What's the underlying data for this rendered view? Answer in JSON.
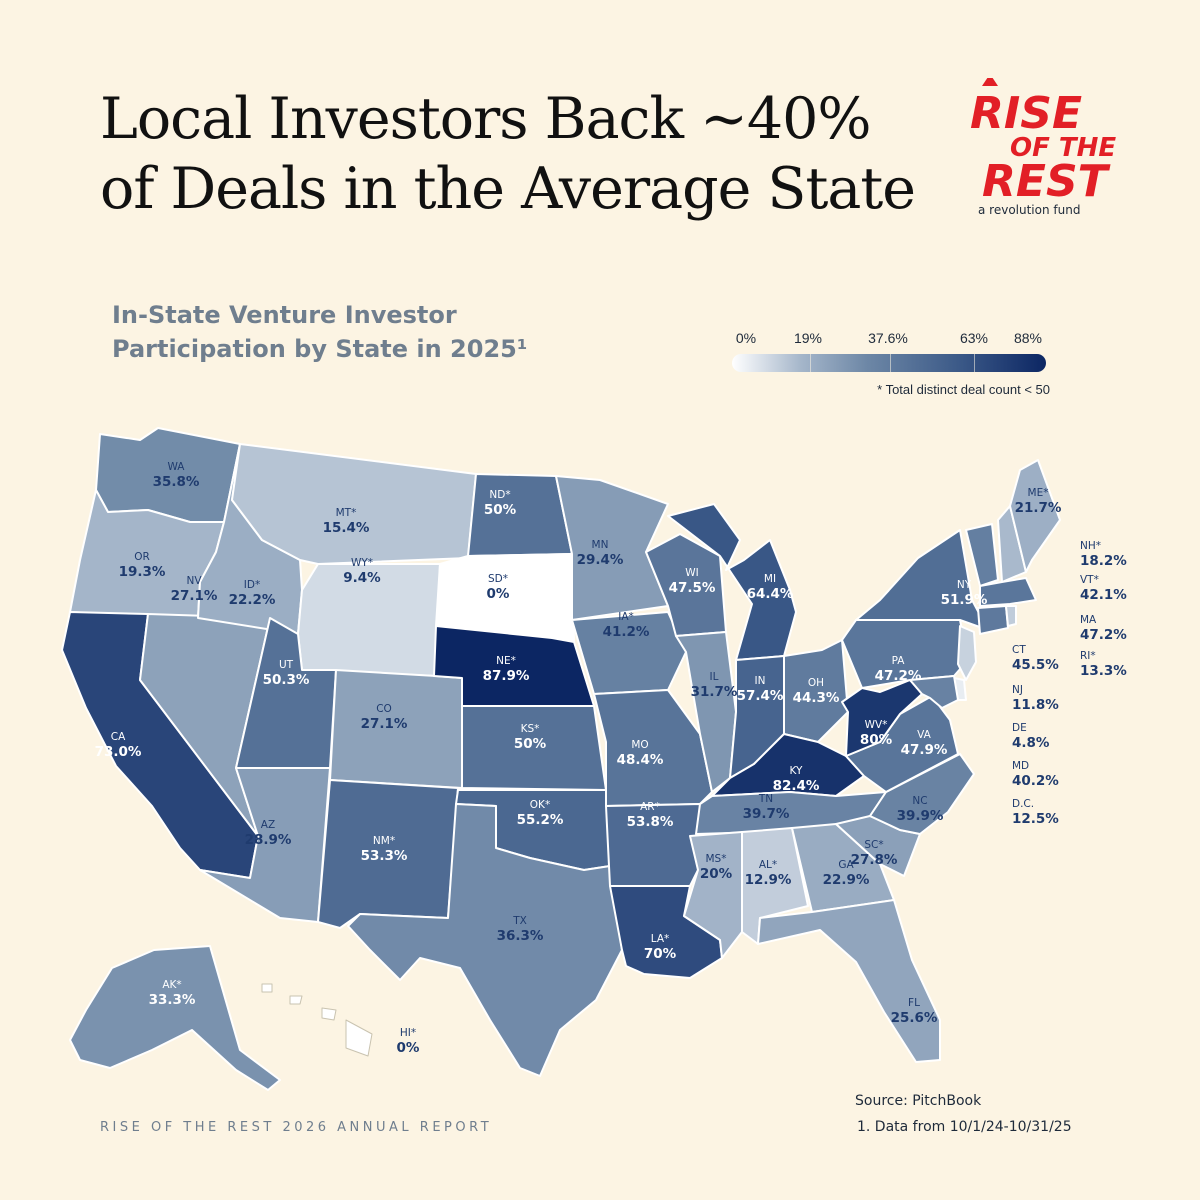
{
  "title": {
    "line1": "Local Investors Back ~40%",
    "line2": "of  Deals in the Average State"
  },
  "logo": {
    "line1": "RISE",
    "line2": "OF THE",
    "line3": "REST",
    "tagline": "a  revolution fund",
    "color": "#e21f26"
  },
  "subtitle": {
    "line1": "In-State Venture Investor",
    "line2": "Participation by State in 2025¹"
  },
  "legend": {
    "ticks": [
      "0%",
      "19%",
      "37.6%",
      "63%",
      "88%"
    ],
    "tick_values": [
      0,
      19,
      37.6,
      63,
      88
    ],
    "note": "* Total distinct deal count < 50"
  },
  "colors": {
    "background": "#fcf4e3",
    "light_label": "#1f3b6e",
    "dark_label": "#ffffff"
  },
  "chart_data": {
    "type": "choropleth",
    "unit": "%",
    "states": [
      {
        "abbr": "WA",
        "value": 35.8,
        "label": "35.8%"
      },
      {
        "abbr": "OR",
        "value": 19.3,
        "label": "19.3%"
      },
      {
        "abbr": "CA",
        "value": 73.0,
        "label": "73.0%"
      },
      {
        "abbr": "NV",
        "value": 27.1,
        "label": "27.1%"
      },
      {
        "abbr": "ID*",
        "value": 22.2,
        "label": "22.2%"
      },
      {
        "abbr": "MT*",
        "value": 15.4,
        "label": "15.4%"
      },
      {
        "abbr": "WY*",
        "value": 9.4,
        "label": "9.4%"
      },
      {
        "abbr": "UT",
        "value": 50.3,
        "label": "50.3%"
      },
      {
        "abbr": "AZ",
        "value": 28.9,
        "label": "28.9%"
      },
      {
        "abbr": "CO",
        "value": 27.1,
        "label": "27.1%"
      },
      {
        "abbr": "NM*",
        "value": 53.3,
        "label": "53.3%"
      },
      {
        "abbr": "ND*",
        "value": 50,
        "label": "50%"
      },
      {
        "abbr": "SD*",
        "value": 0,
        "label": "0%"
      },
      {
        "abbr": "NE*",
        "value": 87.9,
        "label": "87.9%"
      },
      {
        "abbr": "KS*",
        "value": 50,
        "label": "50%"
      },
      {
        "abbr": "OK*",
        "value": 55.2,
        "label": "55.2%"
      },
      {
        "abbr": "TX",
        "value": 36.3,
        "label": "36.3%"
      },
      {
        "abbr": "MN",
        "value": 29.4,
        "label": "29.4%"
      },
      {
        "abbr": "IA*",
        "value": 41.2,
        "label": "41.2%"
      },
      {
        "abbr": "MO",
        "value": 48.4,
        "label": "48.4%"
      },
      {
        "abbr": "AR*",
        "value": 53.8,
        "label": "53.8%"
      },
      {
        "abbr": "LA*",
        "value": 70,
        "label": "70%"
      },
      {
        "abbr": "WI",
        "value": 47.5,
        "label": "47.5%"
      },
      {
        "abbr": "IL",
        "value": 31.7,
        "label": "31.7%"
      },
      {
        "abbr": "MI",
        "value": 64.4,
        "label": "64.4%"
      },
      {
        "abbr": "IN",
        "value": 57.4,
        "label": "57.4%"
      },
      {
        "abbr": "OH",
        "value": 44.3,
        "label": "44.3%"
      },
      {
        "abbr": "KY",
        "value": 82.4,
        "label": "82.4%"
      },
      {
        "abbr": "TN",
        "value": 39.7,
        "label": "39.7%"
      },
      {
        "abbr": "MS*",
        "value": 20,
        "label": "20%"
      },
      {
        "abbr": "AL*",
        "value": 12.9,
        "label": "12.9%"
      },
      {
        "abbr": "GA",
        "value": 22.9,
        "label": "22.9%"
      },
      {
        "abbr": "FL",
        "value": 25.6,
        "label": "25.6%"
      },
      {
        "abbr": "SC*",
        "value": 27.8,
        "label": "27.8%"
      },
      {
        "abbr": "NC",
        "value": 39.9,
        "label": "39.9%"
      },
      {
        "abbr": "VA",
        "value": 47.9,
        "label": "47.9%"
      },
      {
        "abbr": "WV*",
        "value": 80,
        "label": "80%"
      },
      {
        "abbr": "PA",
        "value": 47.2,
        "label": "47.2%"
      },
      {
        "abbr": "NY",
        "value": 51.9,
        "label": "51.9%"
      },
      {
        "abbr": "ME*",
        "value": 21.7,
        "label": "21.7%"
      },
      {
        "abbr": "AK*",
        "value": 33.3,
        "label": "33.3%"
      },
      {
        "abbr": "HI*",
        "value": 0,
        "label": "0%"
      }
    ],
    "side_labels": [
      {
        "abbr": "NH*",
        "value": 18.2,
        "label": "18.2%"
      },
      {
        "abbr": "VT*",
        "value": 42.1,
        "label": "42.1%"
      },
      {
        "abbr": "MA",
        "value": 47.2,
        "label": "47.2%"
      },
      {
        "abbr": "RI*",
        "value": 13.3,
        "label": "13.3%"
      },
      {
        "abbr": "CT",
        "value": 45.5,
        "label": "45.5%"
      },
      {
        "abbr": "NJ",
        "value": 11.8,
        "label": "11.8%"
      },
      {
        "abbr": "DE",
        "value": 4.8,
        "label": "4.8%"
      },
      {
        "abbr": "MD",
        "value": 40.2,
        "label": "40.2%"
      },
      {
        "abbr": "D.C.",
        "value": 12.5,
        "label": "12.5%"
      }
    ]
  },
  "footer": {
    "report": "RISE OF THE REST 2026 ANNUAL REPORT",
    "source": "Source: PitchBook",
    "note": "1. Data from 10/1/24-10/31/25"
  }
}
